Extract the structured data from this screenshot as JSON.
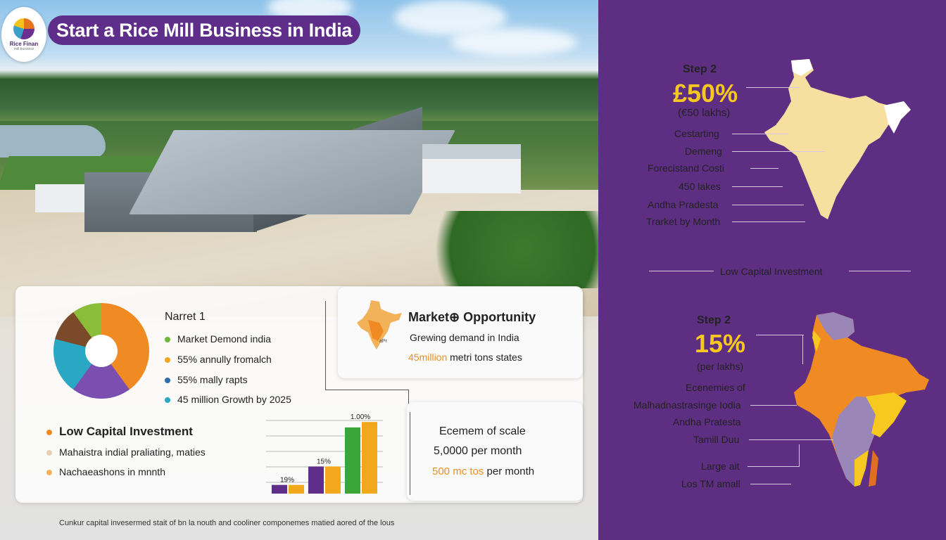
{
  "header": {
    "title": "Start a Rice Mill Business in India",
    "logo_text": "Rice Finan",
    "logo_sub": "mill business"
  },
  "market_card": {
    "heading": "Narret 1",
    "items": [
      {
        "label": "Market Demond india",
        "color": "#6fb83a"
      },
      {
        "label": "55% annully fromalch",
        "color": "#f2a81d"
      },
      {
        "label": "55% mally rapts",
        "color": "#2f6db0"
      },
      {
        "label": "45 million Growth by 2025",
        "color": "#2aa7c3"
      }
    ],
    "donut": [
      {
        "value": 40,
        "color": "#f08a23"
      },
      {
        "value": 20,
        "color": "#7a4fb0"
      },
      {
        "value": 19,
        "color": "#2aa7c3"
      },
      {
        "value": 11,
        "color": "#7a4a2a"
      },
      {
        "value": 10,
        "color": "#8cbd3a"
      }
    ]
  },
  "opportunity_card": {
    "heading": "Market⊕ Opportunity",
    "line1": "Grewing demand in India",
    "line2_highlight": "45million",
    "line2_rest": " metri tons states",
    "map_label": "aPr"
  },
  "investment": {
    "heading": "Low Capital Investment",
    "items": [
      {
        "label": "Mahaistra indial praliating, maties",
        "color": "#e6cfb2"
      },
      {
        "label": "Nachaeashons in mnnth",
        "color": "#f2b25a"
      }
    ]
  },
  "bar_chart": {
    "labels": [
      "19%",
      "15%",
      "1.00%"
    ],
    "groups": [
      {
        "values": [
          8,
          8
        ],
        "colors": [
          "#5e2e8a",
          "#f2a81d"
        ]
      },
      {
        "values": [
          25,
          25
        ],
        "colors": [
          "#5e2e8a",
          "#f2a81d"
        ]
      },
      {
        "values": [
          61,
          66
        ],
        "colors": [
          "#3aa63a",
          "#f2a81d"
        ]
      }
    ],
    "max": 70
  },
  "scale_card": {
    "heading": "Ecemem of scale",
    "line1": "5,0000 per month",
    "line2_highlight": "500 mc tos",
    "line2_rest": " per month"
  },
  "footnote": "Cunkur capital invesermed stait of bn la nouth and cooliner componemes matied aored of the lous",
  "panel": {
    "step_a": {
      "title": "Step 2",
      "big": "£50%",
      "sub": "(€50 lakhs)",
      "labels": [
        "Cestarting",
        "Demeng",
        "Forecistand Costi",
        "450 lakes",
        "Andha Pradesta",
        "Trarket by Month"
      ]
    },
    "divider": "Low Capital Investment",
    "step_b": {
      "title": "Step 2",
      "big": "15%",
      "sub": "(per lakhs)",
      "labels": [
        "Ecenemies of",
        "Malhadnastrasinge Iodia",
        "Andha Pratesta",
        "Tamill Duu",
        "Large ait",
        "Los TM amall"
      ]
    },
    "colors": {
      "background": "#5e2e82",
      "map_a": "#f7dfa0",
      "map_b_orange": "#f08a23",
      "map_b_yellow": "#f7c81f",
      "map_b_lavender": "#9a87b8"
    }
  }
}
